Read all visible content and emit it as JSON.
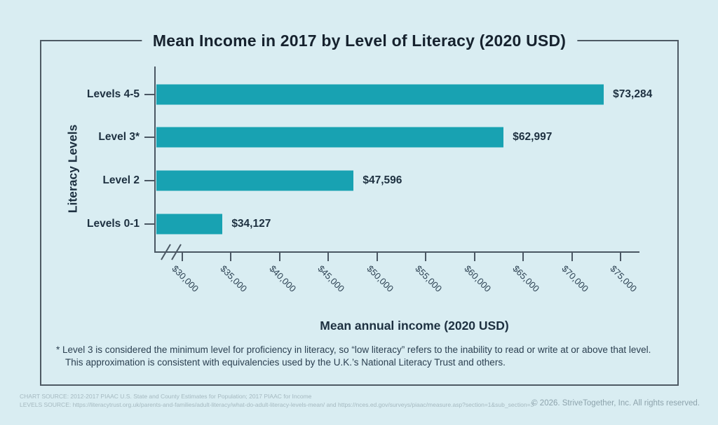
{
  "page": {
    "background": "#d9edf2",
    "copyright": "© 2026. StriveTogether, Inc. All rights reserved.",
    "sources": {
      "chart_source": "CHART SOURCE: 2012-2017 PIAAC U.S. State and County Estimates for Population; 2017 PIAAC for Income",
      "levels_source": "LEVELS SOURCE: https://literacytrust.org.uk/parents-and-families/adult-literacy/what-do-adult-literacy-levels-mean/ and https://nces.ed.gov/surveys/piaac/measure.asp?section=1&sub_section=3"
    }
  },
  "chart_data": {
    "type": "bar",
    "orientation": "horizontal",
    "title": "Mean Income in 2017 by Level of Literacy (2020 USD)",
    "xlabel": "Mean annual income (2020 USD)",
    "ylabel": "Literacy Levels",
    "categories": [
      "Levels 4-5",
      "Level 3*",
      "Level 2",
      "Levels 0-1"
    ],
    "values": [
      73284,
      62997,
      47596,
      34127
    ],
    "value_labels": [
      "$73,284",
      "$62,997",
      "$47,596",
      "$34,127"
    ],
    "x_ticks": [
      30000,
      35000,
      40000,
      45000,
      50000,
      55000,
      60000,
      65000,
      70000,
      75000
    ],
    "x_tick_labels": [
      "$30,000",
      "$35,000",
      "$40,000",
      "$45,000",
      "$50,000",
      "$55,000",
      "$60,000",
      "$65,000",
      "$70,000",
      "$75,000"
    ],
    "xlim": [
      27300,
      77000
    ],
    "axis_break": true,
    "grid": false,
    "legend": "none",
    "bar_color": "#18a2b2",
    "axis_color": "#4a5763",
    "footnote": {
      "line1": "* Level 3 is considered the minimum level for proficiency in literacy, so “low literacy” refers to the inability to read or write at or above that level.",
      "line2": "This approximation is consistent with equivalencies used by the U.K.’s National Literacy Trust and others."
    }
  }
}
